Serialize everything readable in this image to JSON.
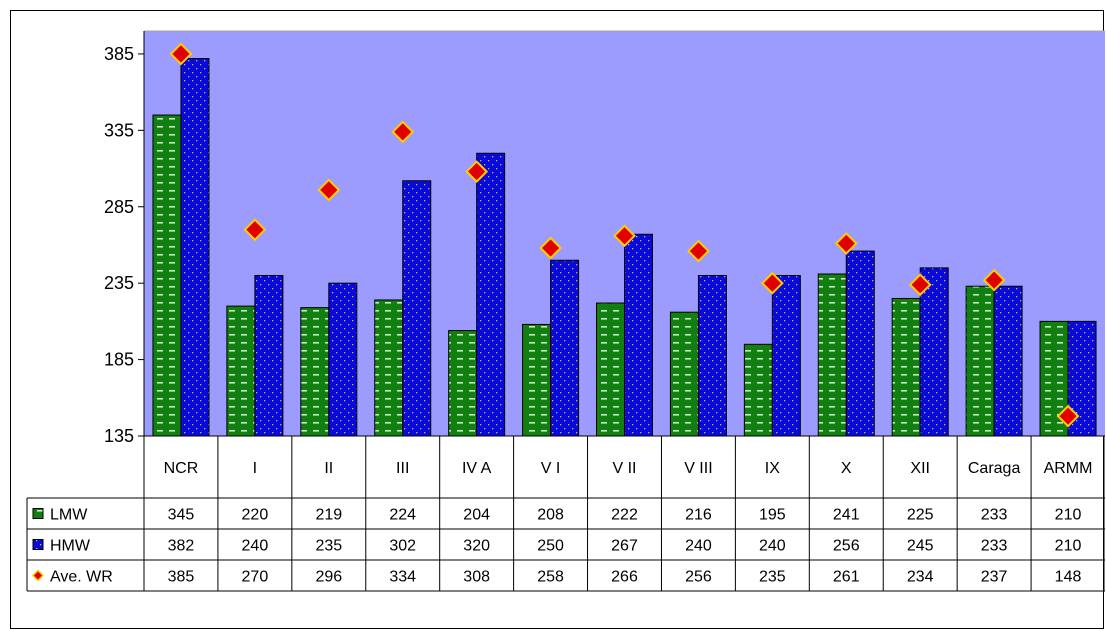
{
  "chart_data": {
    "type": "bar",
    "categories": [
      "NCR",
      "I",
      "II",
      "III",
      "IV A",
      "V I",
      "V II",
      "V III",
      "IX",
      "X",
      "XII",
      "Caraga",
      "ARMM"
    ],
    "series": [
      {
        "name": "LMW",
        "kind": "bar",
        "color": "#118011",
        "values": [
          345,
          220,
          219,
          224,
          204,
          208,
          222,
          216,
          195,
          241,
          225,
          233,
          210
        ]
      },
      {
        "name": "HMW",
        "kind": "bar",
        "color": "#0a0ad8",
        "values": [
          382,
          240,
          235,
          302,
          320,
          250,
          267,
          240,
          240,
          256,
          245,
          233,
          210
        ]
      },
      {
        "name": "Ave. WR",
        "kind": "marker",
        "color": "#e00000",
        "values": [
          385,
          270,
          296,
          334,
          308,
          258,
          266,
          256,
          235,
          261,
          234,
          237,
          148
        ]
      }
    ],
    "yticks": [
      "135",
      "185",
      "235",
      "285",
      "335",
      "385"
    ],
    "ylim": [
      135,
      400
    ],
    "plot_background": "#9c9cff",
    "legend": "data-table"
  }
}
